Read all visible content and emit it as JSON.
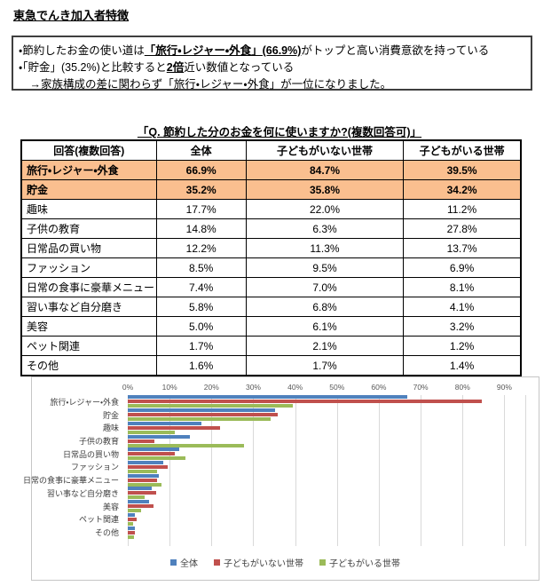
{
  "page_title": "東急でんき加入者特徴",
  "summary_box": {
    "line1": {
      "pre": "・節約したお金の使い道は",
      "em": "「旅行・レジャー・外食」(66.9%)",
      "post": "がトップと高い消費意欲を持っている"
    },
    "line2": {
      "pre": "・「貯金」(35.2%)と比較すると",
      "em": "2倍",
      "post": "近い数値となっている"
    },
    "line3": {
      "pre": "　→家族構成の差に関わらず「旅行・レジャー・外食」が一位になりました。",
      "em": "",
      "post": ""
    }
  },
  "question_title": "「Q. 節約した分のお金を何に使いますか?(複数回答可)」",
  "table": {
    "headers": [
      "回答(複数回答)",
      "全体",
      "子どもがいない世帯",
      "子どもがいる世帯"
    ],
    "highlight_color": "#FABF8F",
    "rows": [
      {
        "label": "旅行・レジャー・外食",
        "values": [
          "66.9%",
          "84.7%",
          "39.5%"
        ],
        "highlight": true
      },
      {
        "label": "貯金",
        "values": [
          "35.2%",
          "35.8%",
          "34.2%"
        ],
        "highlight": true
      },
      {
        "label": "趣味",
        "values": [
          "17.7%",
          "22.0%",
          "11.2%"
        ],
        "highlight": false
      },
      {
        "label": "子供の教育",
        "values": [
          "14.8%",
          "6.3%",
          "27.8%"
        ],
        "highlight": false
      },
      {
        "label": "日常品の買い物",
        "values": [
          "12.2%",
          "11.3%",
          "13.7%"
        ],
        "highlight": false
      },
      {
        "label": "ファッション",
        "values": [
          "8.5%",
          "9.5%",
          "6.9%"
        ],
        "highlight": false
      },
      {
        "label": "日常の食事に豪華メニュー",
        "values": [
          "7.4%",
          "7.0%",
          "8.1%"
        ],
        "highlight": false
      },
      {
        "label": "習い事など自分磨き",
        "values": [
          "5.8%",
          "6.8%",
          "4.1%"
        ],
        "highlight": false
      },
      {
        "label": "美容",
        "values": [
          "5.0%",
          "6.1%",
          "3.2%"
        ],
        "highlight": false
      },
      {
        "label": "ペット関連",
        "values": [
          "1.7%",
          "2.1%",
          "1.2%"
        ],
        "highlight": false
      },
      {
        "label": "その他",
        "values": [
          "1.6%",
          "1.7%",
          "1.4%"
        ],
        "highlight": false
      }
    ]
  },
  "chart_data": {
    "type": "bar",
    "orientation": "horizontal",
    "title": "",
    "categories": [
      "旅行・レジャー・外食",
      "貯金",
      "趣味",
      "子供の教育",
      "日常品の買い物",
      "ファッション",
      "日常の食事に豪華メニュー",
      "習い事など自分磨き",
      "美容",
      "ペット関連",
      "その他"
    ],
    "series": [
      {
        "name": "全体",
        "color": "#4F81BD",
        "values": [
          66.9,
          35.2,
          17.7,
          14.8,
          12.2,
          8.5,
          7.4,
          5.8,
          5.0,
          1.7,
          1.6
        ]
      },
      {
        "name": "子どもがいない世帯",
        "color": "#C0504D",
        "values": [
          84.7,
          35.8,
          22.0,
          6.3,
          11.3,
          9.5,
          7.0,
          6.8,
          6.1,
          2.1,
          1.7
        ]
      },
      {
        "name": "子どもがいる世帯",
        "color": "#9BBB59",
        "values": [
          39.5,
          34.2,
          11.2,
          27.8,
          13.7,
          6.9,
          8.1,
          4.1,
          3.2,
          1.2,
          1.4
        ]
      }
    ],
    "axis_ticks": [
      "0%",
      "10%",
      "20%",
      "30%",
      "40%",
      "50%",
      "60%",
      "70%",
      "80%",
      "90%"
    ],
    "tick_values": [
      0,
      10,
      20,
      30,
      40,
      50,
      60,
      70,
      80,
      90
    ],
    "xlim": [
      0,
      95
    ],
    "grid": true,
    "gridline_color": "#D9D9D9",
    "legend_position": "bottom"
  }
}
